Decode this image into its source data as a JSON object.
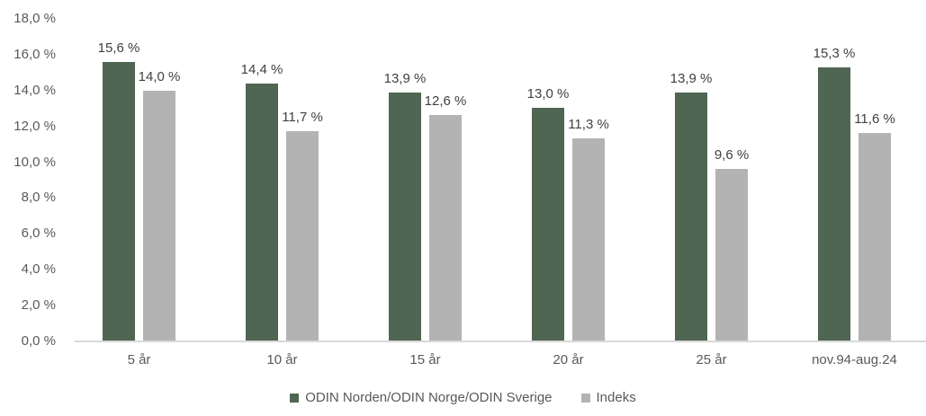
{
  "chart_data": {
    "type": "bar",
    "title": "",
    "xlabel": "",
    "ylabel": "",
    "grid": false,
    "legend_position": "bottom",
    "ylim": [
      0,
      18
    ],
    "categories": [
      "5 år",
      "10 år",
      "15 år",
      "20 år",
      "25 år",
      "nov.94-aug.24"
    ],
    "series": [
      {
        "name": "ODIN Norden/ODIN Norge/ODIN Sverige",
        "color": "#4f6652",
        "values": [
          15.6,
          14.4,
          13.9,
          13.0,
          13.9,
          15.3
        ],
        "data_labels": [
          "15,6 %",
          "14,4 %",
          "13,9 %",
          "13,0 %",
          "13,9 %",
          "15,3 %"
        ]
      },
      {
        "name": "Indeks",
        "color": "#b3b3b3",
        "values": [
          14.0,
          11.7,
          12.6,
          11.3,
          9.6,
          11.6
        ],
        "data_labels": [
          "14,0 %",
          "11,7 %",
          "12,6 %",
          "11,3 %",
          "9,6 %",
          "11,6 %"
        ]
      }
    ],
    "y_ticks": [
      {
        "value": 0,
        "label": "0,0 %"
      },
      {
        "value": 2,
        "label": "2,0 %"
      },
      {
        "value": 4,
        "label": "4,0 %"
      },
      {
        "value": 6,
        "label": "6,0 %"
      },
      {
        "value": 8,
        "label": "8,0 %"
      },
      {
        "value": 10,
        "label": "10,0 %"
      },
      {
        "value": 12,
        "label": "12,0 %"
      },
      {
        "value": 14,
        "label": "14,0 %"
      },
      {
        "value": 16,
        "label": "16,0 %"
      },
      {
        "value": 18,
        "label": "18,0 %"
      }
    ]
  },
  "colors": {
    "axis_line": "#d9d9d9",
    "axis_text": "#595959",
    "data_label_text": "#404040",
    "background": "#ffffff"
  }
}
